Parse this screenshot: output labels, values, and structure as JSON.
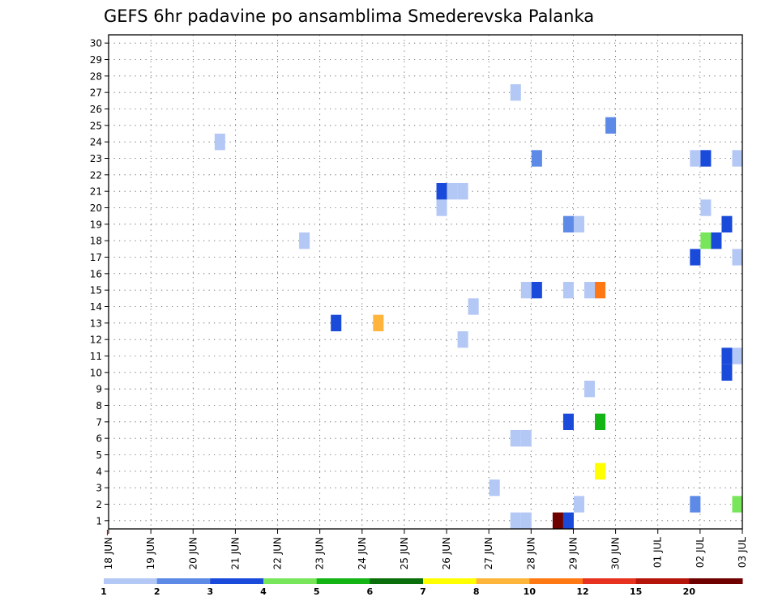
{
  "chart_data": {
    "type": "heatmap",
    "title": "GEFS 6hr padavine po ansamblima Smederevska Palanka",
    "xlabel": "",
    "ylabel": "",
    "y_tick_labels": [
      "1",
      "2",
      "3",
      "4",
      "5",
      "6",
      "7",
      "8",
      "9",
      "10",
      "11",
      "12",
      "13",
      "14",
      "15",
      "16",
      "17",
      "18",
      "19",
      "20",
      "21",
      "22",
      "23",
      "24",
      "25",
      "26",
      "27",
      "28",
      "29",
      "30"
    ],
    "ylim": [
      0.5,
      30.5
    ],
    "x_tick_labels": [
      "18 JUN",
      "19 JUN",
      "20 JUN",
      "21 JUN",
      "22 JUN",
      "23 JUN",
      "24 JUN",
      "25 JUN",
      "26 JUN",
      "27 JUN",
      "28 JUN",
      "29 JUN",
      "30 JUN",
      "01 JUL",
      "02 JUL",
      "03 JUL"
    ],
    "xlim_steps": [
      0,
      60
    ],
    "steps_per_day": 4,
    "grid": true,
    "legend": {
      "position": "bottom",
      "thresholds": [
        "1",
        "2",
        "3",
        "4",
        "5",
        "6",
        "7",
        "8",
        "10",
        "12",
        "15",
        "20"
      ],
      "colors": [
        "#b4c8f5",
        "#5c8ae6",
        "#1a4ad9",
        "#78e65a",
        "#14b414",
        "#0a6e0a",
        "#ffff00",
        "#ffb43c",
        "#ff7814",
        "#e6321e",
        "#b4140a",
        "#6e0000"
      ]
    },
    "cells": [
      {
        "member": 1,
        "step": 39,
        "level": 1
      },
      {
        "member": 1,
        "step": 40,
        "level": 1
      },
      {
        "member": 1,
        "step": 43,
        "level": 12
      },
      {
        "member": 1,
        "step": 44,
        "level": 3
      },
      {
        "member": 2,
        "step": 45,
        "level": 1
      },
      {
        "member": 2,
        "step": 56,
        "level": 2
      },
      {
        "member": 2,
        "step": 60,
        "level": 4
      },
      {
        "member": 3,
        "step": 37,
        "level": 1
      },
      {
        "member": 4,
        "step": 47,
        "level": 7
      },
      {
        "member": 6,
        "step": 39,
        "level": 1
      },
      {
        "member": 6,
        "step": 40,
        "level": 1
      },
      {
        "member": 7,
        "step": 44,
        "level": 3
      },
      {
        "member": 7,
        "step": 47,
        "level": 5
      },
      {
        "member": 9,
        "step": 46,
        "level": 1
      },
      {
        "member": 10,
        "step": 59,
        "level": 3
      },
      {
        "member": 11,
        "step": 59,
        "level": 3
      },
      {
        "member": 11,
        "step": 60,
        "level": 1
      },
      {
        "member": 12,
        "step": 34,
        "level": 1
      },
      {
        "member": 13,
        "step": 22,
        "level": 3
      },
      {
        "member": 13,
        "step": 26,
        "level": 8
      },
      {
        "member": 14,
        "step": 35,
        "level": 1
      },
      {
        "member": 15,
        "step": 40,
        "level": 1
      },
      {
        "member": 15,
        "step": 41,
        "level": 3
      },
      {
        "member": 15,
        "step": 44,
        "level": 1
      },
      {
        "member": 15,
        "step": 46,
        "level": 1
      },
      {
        "member": 15,
        "step": 47,
        "level": 9
      },
      {
        "member": 17,
        "step": 56,
        "level": 3
      },
      {
        "member": 17,
        "step": 60,
        "level": 1
      },
      {
        "member": 18,
        "step": 19,
        "level": 1
      },
      {
        "member": 18,
        "step": 57,
        "level": 4
      },
      {
        "member": 18,
        "step": 58,
        "level": 3
      },
      {
        "member": 19,
        "step": 44,
        "level": 2
      },
      {
        "member": 19,
        "step": 45,
        "level": 1
      },
      {
        "member": 19,
        "step": 59,
        "level": 3
      },
      {
        "member": 20,
        "step": 32,
        "level": 1
      },
      {
        "member": 20,
        "step": 57,
        "level": 1
      },
      {
        "member": 21,
        "step": 32,
        "level": 3
      },
      {
        "member": 21,
        "step": 33,
        "level": 1
      },
      {
        "member": 21,
        "step": 34,
        "level": 1
      },
      {
        "member": 23,
        "step": 41,
        "level": 2
      },
      {
        "member": 23,
        "step": 56,
        "level": 1
      },
      {
        "member": 23,
        "step": 57,
        "level": 3
      },
      {
        "member": 23,
        "step": 60,
        "level": 1
      },
      {
        "member": 24,
        "step": 11,
        "level": 1
      },
      {
        "member": 25,
        "step": 48,
        "level": 2
      },
      {
        "member": 27,
        "step": 39,
        "level": 1
      }
    ]
  }
}
